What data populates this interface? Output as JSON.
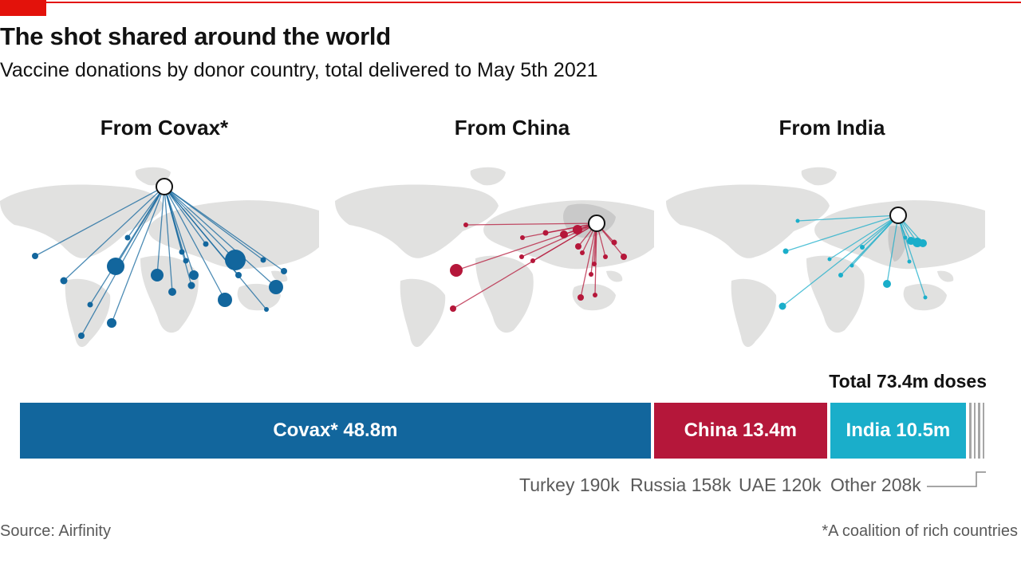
{
  "title": "The shot shared around the world",
  "subtitle": "Vaccine donations by donor country, total delivered to May 5th 2021",
  "panels": [
    {
      "title": "From Covax*"
    },
    {
      "title": "From China"
    },
    {
      "title": "From India"
    }
  ],
  "colors": {
    "covax": "#12669d",
    "china": "#b5173a",
    "india": "#1aaeca",
    "other": "#a6a6a6",
    "land": "#e1e1e0",
    "accent": "#e3120b"
  },
  "chart_data": {
    "type": "bar",
    "orientation": "horizontal-stacked",
    "unit": "doses",
    "total_label": "Total 73.4m doses",
    "segments": [
      {
        "name": "Covax*",
        "value": 48.8,
        "display": "Covax* 48.8m"
      },
      {
        "name": "China",
        "value": 13.4,
        "display": "China 13.4m"
      },
      {
        "name": "India",
        "value": 10.5,
        "display": "India 10.5m"
      },
      {
        "name": "Turkey",
        "value": 0.19,
        "display": "Turkey 190k"
      },
      {
        "name": "Russia",
        "value": 0.158,
        "display": "Russia 158k"
      },
      {
        "name": "UAE",
        "value": 0.12,
        "display": "UAE 120k"
      },
      {
        "name": "Other",
        "value": 0.208,
        "display": "Other 208k"
      }
    ]
  },
  "source": "Source: Airfinity",
  "footnote": "*A coalition of rich countries"
}
